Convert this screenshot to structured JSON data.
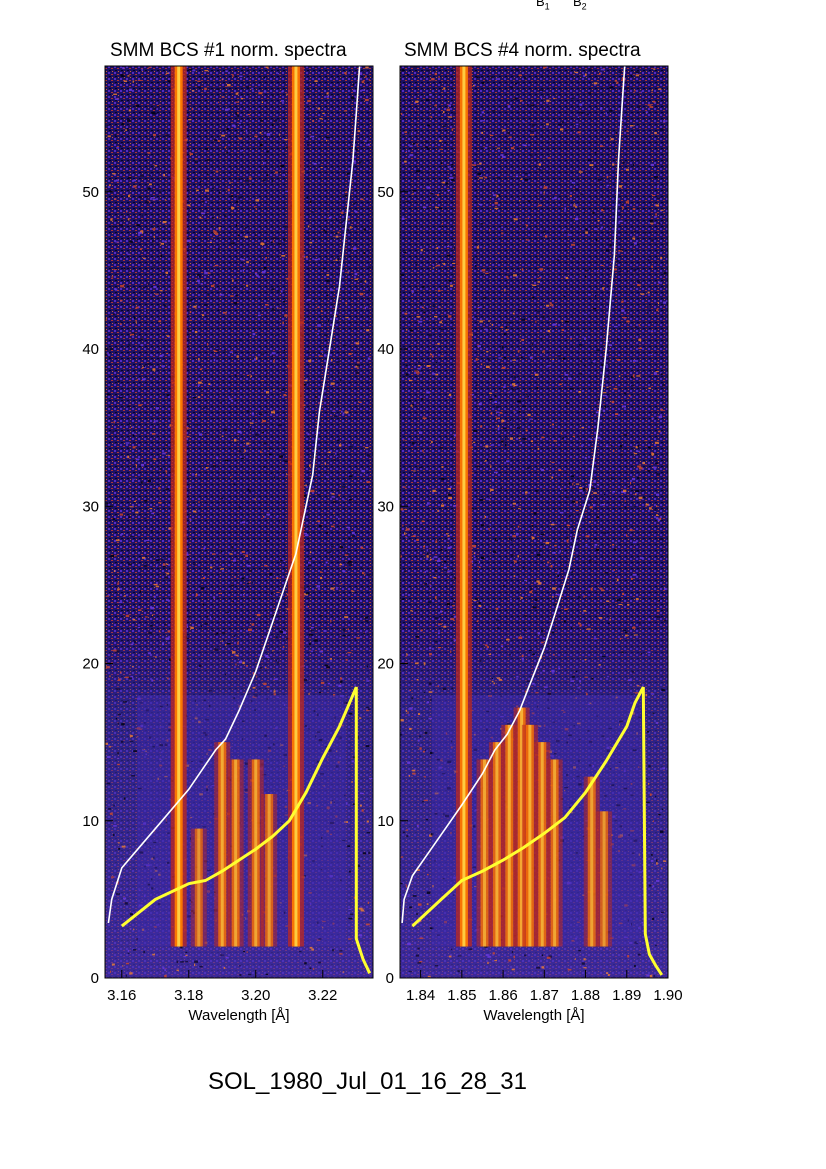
{
  "page_label": "SOL_1980_Jul_01_16_28_31",
  "top_labels": [
    {
      "letter": "B",
      "sub": "1"
    },
    {
      "letter": "B",
      "sub": "2"
    }
  ],
  "colors": {
    "curve_white": "#ffffff",
    "curve_yellow": "#ffff30",
    "background_low": "#000010",
    "background_mid": "#2a1f8a",
    "line_bright": "#ff7a00",
    "line_core": "#ffd84a"
  },
  "chart_data": [
    {
      "type": "heatmap",
      "title": "SMM BCS #1 norm. spectra",
      "xlabel": "Wavelength [Å]",
      "ylabel": "",
      "xlim": [
        3.155,
        3.235
      ],
      "ylim": [
        0,
        58
      ],
      "xticks": [
        3.16,
        3.18,
        3.2,
        3.22
      ],
      "xtick_labels": [
        "3.16",
        "3.18",
        "3.20",
        "3.22"
      ],
      "yticks": [
        0,
        10,
        20,
        30,
        40,
        50
      ],
      "ytick_labels": [
        "0",
        "10",
        "20",
        "30",
        "40",
        "50"
      ],
      "spectral_lines": [
        {
          "wavelength": 3.177,
          "strength": 1.0
        },
        {
          "wavelength": 3.183,
          "strength": 0.25
        },
        {
          "wavelength": 3.19,
          "strength": 0.5
        },
        {
          "wavelength": 3.194,
          "strength": 0.45
        },
        {
          "wavelength": 3.2,
          "strength": 0.45
        },
        {
          "wavelength": 3.204,
          "strength": 0.35
        },
        {
          "wavelength": 3.212,
          "strength": 0.95
        }
      ],
      "series": [
        {
          "color": "white",
          "x": [
            3.156,
            3.157,
            3.16,
            3.166,
            3.172,
            3.18,
            3.188,
            3.191,
            3.195,
            3.2,
            3.204,
            3.208,
            3.212,
            3.215,
            3.217,
            3.219,
            3.222,
            3.225,
            3.227,
            3.229,
            3.23,
            3.231
          ],
          "y": [
            3.5,
            5,
            7,
            8.5,
            10,
            12,
            14.5,
            15.2,
            17,
            19.5,
            22,
            24.5,
            27,
            30,
            32,
            36,
            40,
            44,
            48,
            52,
            55,
            58
          ]
        },
        {
          "color": "yellow",
          "x": [
            3.16,
            3.17,
            3.18,
            3.185,
            3.19,
            3.195,
            3.2,
            3.205,
            3.21,
            3.215,
            3.22,
            3.225,
            3.228,
            3.23,
            3.23,
            3.232,
            3.234
          ],
          "y": [
            3.3,
            5,
            6,
            6.2,
            6.8,
            7.5,
            8.2,
            9,
            10,
            11.8,
            14,
            16,
            17.5,
            18.5,
            2.5,
            1.2,
            0.3
          ]
        }
      ]
    },
    {
      "type": "heatmap",
      "title": "SMM BCS #4 norm. spectra",
      "xlabel": "Wavelength [Å]",
      "ylabel": "",
      "xlim": [
        1.835,
        1.9
      ],
      "ylim": [
        0,
        58
      ],
      "xticks": [
        1.84,
        1.85,
        1.86,
        1.87,
        1.88,
        1.89,
        1.9
      ],
      "xtick_labels": [
        "1.84",
        "1.85",
        "1.86",
        "1.87",
        "1.88",
        "1.89",
        "1.90"
      ],
      "yticks": [
        0,
        10,
        20,
        30,
        40,
        50
      ],
      "ytick_labels": [
        "0",
        "10",
        "20",
        "30",
        "40",
        "50"
      ],
      "spectral_lines": [
        {
          "wavelength": 1.8505,
          "strength": 0.95
        },
        {
          "wavelength": 1.8555,
          "strength": 0.45
        },
        {
          "wavelength": 1.8585,
          "strength": 0.5
        },
        {
          "wavelength": 1.8615,
          "strength": 0.55
        },
        {
          "wavelength": 1.8645,
          "strength": 0.6
        },
        {
          "wavelength": 1.8665,
          "strength": 0.55
        },
        {
          "wavelength": 1.8695,
          "strength": 0.5
        },
        {
          "wavelength": 1.8725,
          "strength": 0.45
        },
        {
          "wavelength": 1.8815,
          "strength": 0.4
        },
        {
          "wavelength": 1.8845,
          "strength": 0.3
        }
      ],
      "series": [
        {
          "color": "white",
          "x": [
            1.8355,
            1.836,
            1.838,
            1.842,
            1.846,
            1.85,
            1.855,
            1.858,
            1.861,
            1.864,
            1.867,
            1.87,
            1.873,
            1.876,
            1.878,
            1.881,
            1.883,
            1.885,
            1.887,
            1.888,
            1.889,
            1.8895
          ],
          "y": [
            3.5,
            5,
            6.5,
            8,
            9.5,
            11,
            13,
            14.5,
            15.5,
            17,
            19,
            21,
            23.5,
            26,
            28.5,
            31,
            35,
            40,
            46,
            52,
            56,
            58
          ]
        },
        {
          "color": "yellow",
          "x": [
            1.838,
            1.845,
            1.85,
            1.855,
            1.86,
            1.865,
            1.87,
            1.875,
            1.88,
            1.885,
            1.89,
            1.892,
            1.894,
            1.8945,
            1.8955,
            1.897,
            1.8985
          ],
          "y": [
            3.3,
            5,
            6.2,
            6.8,
            7.5,
            8.3,
            9.2,
            10.2,
            11.8,
            13.8,
            16,
            17.5,
            18.5,
            2.8,
            1.5,
            0.8,
            0.2
          ]
        }
      ]
    }
  ]
}
